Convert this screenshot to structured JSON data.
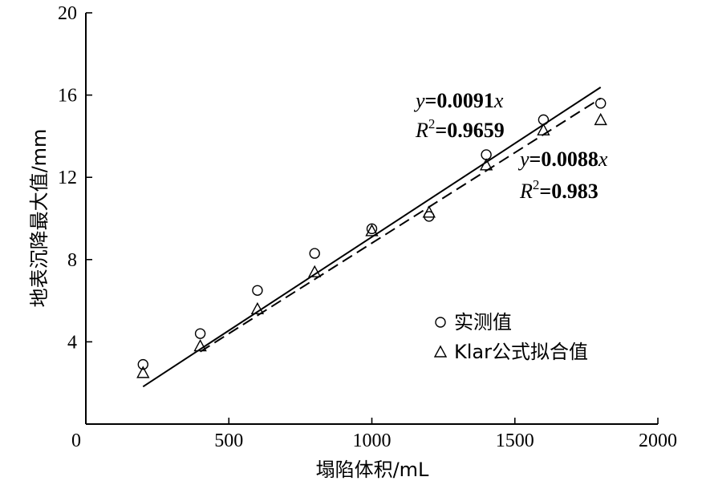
{
  "chart_data": {
    "type": "scatter",
    "xlabel": "塌陷体积/mL",
    "ylabel": "地表沉降最大值/mm",
    "xlim": [
      0,
      2000
    ],
    "ylim": [
      0,
      20
    ],
    "x_ticks": [
      0,
      500,
      1000,
      1500,
      2000
    ],
    "y_ticks": [
      4,
      8,
      12,
      16,
      20
    ],
    "x_tick_labels": [
      "0",
      "500",
      "1000",
      "1500",
      "2000"
    ],
    "y_tick_labels": [
      "4",
      "8",
      "12",
      "16",
      "20"
    ],
    "series": [
      {
        "name": "实测值",
        "marker": "circle",
        "x": [
          200,
          400,
          600,
          800,
          1000,
          1200,
          1400,
          1600,
          1800
        ],
        "y": [
          2.9,
          4.4,
          6.5,
          8.3,
          9.5,
          10.1,
          13.1,
          14.8,
          15.6
        ]
      },
      {
        "name": "Klar公式拟合值",
        "marker": "triangle",
        "x": [
          200,
          400,
          600,
          800,
          1000,
          1200,
          1400,
          1600,
          1800
        ],
        "y": [
          2.5,
          3.8,
          5.6,
          7.4,
          9.4,
          10.3,
          12.6,
          14.3,
          14.8
        ]
      }
    ],
    "fits": [
      {
        "style": "solid",
        "slope": 0.0091,
        "x_range": [
          200,
          1800
        ],
        "equation_prefix": "y",
        "equation_value": "=0.0091",
        "equation_suffix": "x",
        "r2_prefix": "R",
        "r2_sup": "2",
        "r2_value": "=0.9659"
      },
      {
        "style": "dashed",
        "slope": 0.0088,
        "x_range": [
          400,
          1800
        ],
        "equation_prefix": "y",
        "equation_value": "=0.0088",
        "equation_suffix": "x",
        "r2_prefix": "R",
        "r2_sup": "2",
        "r2_value": "=0.983"
      }
    ],
    "legend_position": "lower-right"
  }
}
